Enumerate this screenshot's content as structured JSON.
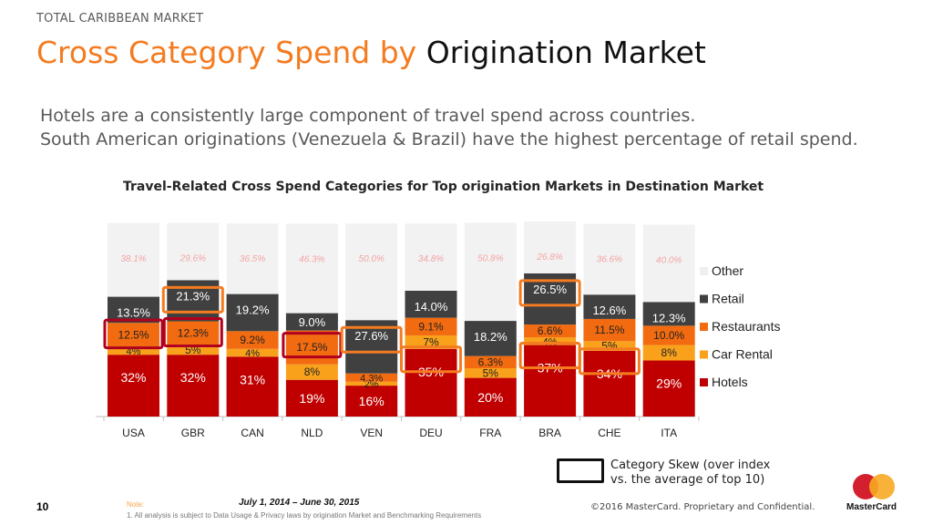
{
  "header": {
    "kicker": "TOTAL CARIBBEAN MARKET",
    "title_accent": "Cross Category Spend by",
    "title_rest": "Origination Market",
    "subtitle_line1": "Hotels are a consistently large component of travel spend across countries.",
    "subtitle_line2": "South American originations (Venezuela & Brazil) have the highest percentage of retail spend."
  },
  "chart_data": {
    "type": "bar",
    "stacked": true,
    "title": "Travel-Related Cross Spend Categories for Top origination Markets in Destination Market",
    "categories": [
      "USA",
      "GBR",
      "CAN",
      "NLD",
      "VEN",
      "DEU",
      "FRA",
      "BRA",
      "CHE",
      "ITA"
    ],
    "ylim": [
      0,
      100
    ],
    "grid": false,
    "legend_position": "right",
    "series": [
      {
        "name": "Hotels",
        "color": "#c00000",
        "values": [
          32,
          32,
          31,
          19,
          16,
          35,
          20,
          37,
          34,
          29
        ],
        "labels": [
          "32%",
          "32%",
          "31%",
          "19%",
          "16%",
          "35%",
          "20%",
          "37%",
          "34%",
          "29%"
        ]
      },
      {
        "name": "Car Rental",
        "color": "#f9a11b",
        "values": [
          4,
          5,
          4,
          8,
          2,
          7,
          5,
          4,
          5,
          8
        ],
        "labels": [
          "4%",
          "5%",
          "4%",
          "8%",
          "2%",
          "7%",
          "5%",
          "4%",
          "5%",
          "8%"
        ]
      },
      {
        "name": "Restaurants",
        "color": "#f26b10",
        "values": [
          12.5,
          12.3,
          9.2,
          17.5,
          4.3,
          9.1,
          6.3,
          6.6,
          11.5,
          10.0
        ],
        "labels": [
          "12.5%",
          "12.3%",
          "9.2%",
          "17.5%",
          "4.3%",
          "9.1%",
          "6.3%",
          "6.6%",
          "11.5%",
          "10.0%"
        ]
      },
      {
        "name": "Retail",
        "color": "#404040",
        "values": [
          13.5,
          21.3,
          19.2,
          9.0,
          27.6,
          14.0,
          18.2,
          26.5,
          12.6,
          12.3
        ],
        "labels": [
          "13.5%",
          "21.3%",
          "19.2%",
          "9.0%",
          "27.6%",
          "14.0%",
          "18.2%",
          "26.5%",
          "12.6%",
          "12.3%"
        ]
      },
      {
        "name": "Other",
        "color": "#f2f2f2",
        "values": [
          38.1,
          29.6,
          36.5,
          46.3,
          50.0,
          34.8,
          50.8,
          26.8,
          36.6,
          40.0
        ],
        "labels": [
          "38.1%",
          "29.6%",
          "36.5%",
          "46.3%",
          "50.0%",
          "34.8%",
          "50.8%",
          "26.8%",
          "36.6%",
          "40.0%"
        ]
      }
    ],
    "highlights": [
      {
        "category": "USA",
        "series": "Restaurants",
        "style": "skew-dark"
      },
      {
        "category": "GBR",
        "series": "Restaurants",
        "style": "skew-dark"
      },
      {
        "category": "GBR",
        "series": "Retail",
        "style": "orange"
      },
      {
        "category": "NLD",
        "series": "Restaurants",
        "style": "skew-dark"
      },
      {
        "category": "VEN",
        "series": "Retail",
        "style": "orange"
      },
      {
        "category": "DEU",
        "series": "Hotels",
        "style": "orange"
      },
      {
        "category": "BRA",
        "series": "Retail",
        "style": "orange"
      },
      {
        "category": "BRA",
        "series": "Hotels",
        "style": "orange"
      },
      {
        "category": "CHE",
        "series": "Hotels",
        "style": "orange"
      }
    ]
  },
  "legend_note": {
    "line1": "Category Skew (over index",
    "line2": "vs. the average of top 10)"
  },
  "footer": {
    "page_number": "10",
    "date_range": "July 1, 2014 – June 30, 2015",
    "note_label": "Note:",
    "note_text": "1. All analysis is subject to Data Usage & Privacy laws by origination Market and Benchmarking Requirements",
    "copyright": "©2016 MasterCard. Proprietary and Confidential.",
    "logo_text": "MasterCard"
  }
}
